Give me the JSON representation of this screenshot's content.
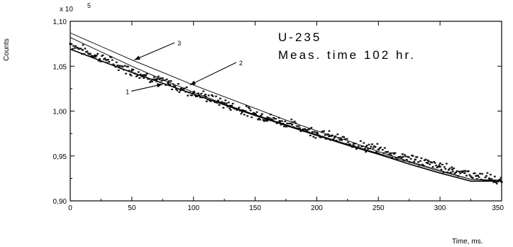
{
  "chart_data": {
    "type": "scatter",
    "title": "",
    "xlabel": "Time, ms.",
    "ylabel": "Counts",
    "y_multiplier": "x 10",
    "y_multiplier_exp": "5",
    "xlim": [
      0,
      350
    ],
    "ylim": [
      0.9,
      1.1
    ],
    "x_ticks": [
      0,
      50,
      100,
      150,
      200,
      250,
      300,
      350
    ],
    "y_ticks": [
      0.9,
      0.95,
      1.0,
      1.05,
      1.1
    ],
    "y_tick_labels": [
      "0,90",
      "0,95",
      "1,00",
      "1,05",
      "1,10"
    ],
    "grid": false,
    "annotation_lines": [
      "U-235",
      "Meas. time 102 hr."
    ],
    "series": [
      {
        "name": "",
        "kind": "measured",
        "x": [
          0,
          10,
          20,
          30,
          40,
          50,
          60,
          70,
          80,
          90,
          100,
          110,
          120,
          130,
          140,
          150,
          160,
          170,
          180,
          190,
          200,
          210,
          220,
          230,
          240,
          250,
          260,
          270,
          280,
          290,
          300,
          310,
          320,
          330,
          340,
          350
        ],
        "y": [
          1.075,
          1.068,
          1.062,
          1.057,
          1.05,
          1.045,
          1.04,
          1.035,
          1.03,
          1.025,
          1.02,
          1.016,
          1.011,
          1.006,
          1.001,
          0.997,
          0.993,
          0.989,
          0.985,
          0.98,
          0.976,
          0.972,
          0.968,
          0.964,
          0.96,
          0.957,
          0.953,
          0.949,
          0.946,
          0.942,
          0.938,
          0.935,
          0.931,
          0.928,
          0.925,
          0.921
        ]
      },
      {
        "name": "",
        "label": "1",
        "kind": "fit",
        "x": [
          0,
          25,
          50,
          75,
          100,
          125,
          150,
          175,
          200,
          225,
          250,
          275,
          300,
          325,
          350
        ],
        "y": [
          1.069,
          1.056,
          1.043,
          1.031,
          1.019,
          1.007,
          0.995,
          0.984,
          0.973,
          0.962,
          0.952,
          0.941,
          0.931,
          0.922,
          0.922
        ]
      },
      {
        "name": "",
        "label": "2",
        "kind": "fit",
        "x": [
          0,
          25,
          50,
          75,
          100,
          125,
          150,
          175,
          200,
          225,
          250,
          275,
          300,
          325,
          350
        ],
        "y": [
          1.082,
          1.066,
          1.05,
          1.035,
          1.021,
          1.008,
          0.996,
          0.985,
          0.974,
          0.963,
          0.953,
          0.943,
          0.933,
          0.924,
          0.923
        ]
      },
      {
        "name": "",
        "label": "3",
        "kind": "fit",
        "x": [
          0,
          25,
          50,
          75,
          100,
          125,
          150,
          175,
          200,
          225,
          250,
          275,
          300,
          325,
          350
        ],
        "y": [
          1.087,
          1.072,
          1.057,
          1.043,
          1.029,
          1.016,
          1.003,
          0.99,
          0.978,
          0.967,
          0.955,
          0.944,
          0.934,
          0.924,
          0.922
        ]
      }
    ],
    "curve_labels": [
      {
        "text": "1",
        "x": 45,
        "y": 1.019,
        "arrow_to": [
          75,
          1.03
        ]
      },
      {
        "text": "2",
        "x": 137,
        "y": 1.051,
        "arrow_to": [
          97,
          1.029
        ]
      },
      {
        "text": "3",
        "x": 87,
        "y": 1.073,
        "arrow_to": [
          52,
          1.057
        ]
      }
    ]
  }
}
